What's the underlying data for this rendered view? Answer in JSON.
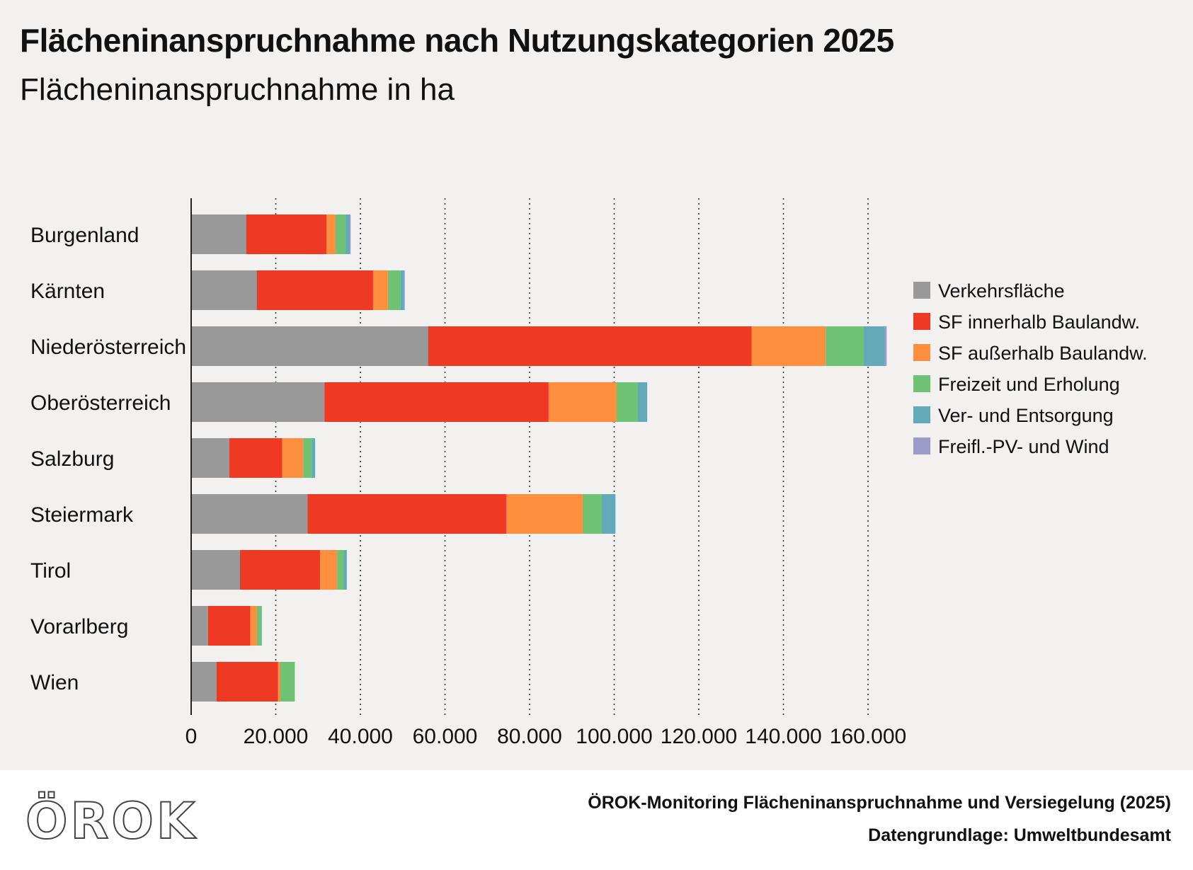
{
  "header": {
    "title": "Flächeninanspruchnahme nach Nutzungskategorien 2025",
    "subtitle": "Flächeninanspruchnahme in ha"
  },
  "footer": {
    "logo_text": "ÖROK",
    "source": "ÖROK-Monitoring Flächeninanspruchnahme und Versiegelung (2025)",
    "data_basis": "Datengrundlage: Umweltbundesamt"
  },
  "chart_data": {
    "type": "bar",
    "orientation": "horizontal",
    "stacked": true,
    "title": "Flächeninanspruchnahme nach Nutzungskategorien 2025",
    "subtitle": "Flächeninanspruchnahme in ha",
    "categories": [
      "Burgenland",
      "Kärnten",
      "Niederösterreich",
      "Oberösterreich",
      "Salzburg",
      "Steiermark",
      "Tirol",
      "Vorarlberg",
      "Wien"
    ],
    "xlim": [
      0,
      170000
    ],
    "xticks": [
      0,
      20000,
      40000,
      60000,
      80000,
      100000,
      120000,
      140000,
      160000
    ],
    "xtick_labels": [
      "0",
      "20.000",
      "40.000",
      "60.000",
      "80.000",
      "100.000",
      "120.000",
      "140.000",
      "160.000"
    ],
    "grid": "vertical dotted",
    "legend_position": "right",
    "series": [
      {
        "name": "Verkehrsfläche",
        "color": "#999999",
        "values": [
          13000,
          15500,
          56000,
          31500,
          9000,
          27500,
          11500,
          4000,
          6000
        ]
      },
      {
        "name": "SF innerhalb Baulandw.",
        "color": "#ef3a23",
        "values": [
          19000,
          27500,
          76500,
          53000,
          12500,
          47000,
          19000,
          10000,
          14500
        ]
      },
      {
        "name": "SF außerhalb Baulandw.",
        "color": "#fd8f3e",
        "values": [
          2000,
          3500,
          17500,
          16000,
          5000,
          18000,
          4000,
          1500,
          500
        ]
      },
      {
        "name": "Freizeit und Erholung",
        "color": "#6fc174",
        "values": [
          2500,
          3000,
          9000,
          5000,
          2000,
          4500,
          1500,
          1000,
          3500
        ]
      },
      {
        "name": "Ver- und Entsorgung",
        "color": "#64a9b7",
        "values": [
          1000,
          800,
          5000,
          2300,
          800,
          3300,
          800,
          200,
          0
        ]
      },
      {
        "name": "Freifl.-PV- und Wind",
        "color": "#9d9bc8",
        "values": [
          200,
          200,
          400,
          0,
          0,
          0,
          0,
          0,
          0
        ]
      }
    ]
  }
}
